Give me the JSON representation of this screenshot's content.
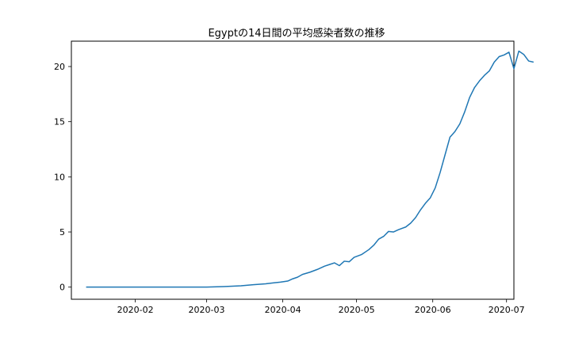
{
  "chart_data": {
    "type": "line",
    "title": "Egyptの14日間の平均感染者数の推移",
    "xlabel": "",
    "ylabel": "",
    "x_axis": {
      "type": "date",
      "range": [
        "2020-01-06",
        "2020-07-04"
      ],
      "ticks": [
        "2020-02",
        "2020-03",
        "2020-04",
        "2020-05",
        "2020-06",
        "2020-07"
      ]
    },
    "y_axis": {
      "range": [
        -1.1,
        22.3
      ],
      "ticks": [
        0,
        5,
        10,
        15,
        20
      ]
    },
    "grid": false,
    "legend": "none",
    "series": [
      {
        "color": "#1f77b4",
        "points": [
          [
            "2020-01-12",
            0
          ],
          [
            "2020-02-01",
            0
          ],
          [
            "2020-02-20",
            0
          ],
          [
            "2020-03-01",
            0
          ],
          [
            "2020-03-08",
            0.05
          ],
          [
            "2020-03-15",
            0.12
          ],
          [
            "2020-03-20",
            0.22
          ],
          [
            "2020-03-25",
            0.3
          ],
          [
            "2020-03-28",
            0.38
          ],
          [
            "2020-03-31",
            0.45
          ],
          [
            "2020-04-03",
            0.55
          ],
          [
            "2020-04-05",
            0.75
          ],
          [
            "2020-04-07",
            0.9
          ],
          [
            "2020-04-09",
            1.15
          ],
          [
            "2020-04-12",
            1.35
          ],
          [
            "2020-04-15",
            1.6
          ],
          [
            "2020-04-18",
            1.9
          ],
          [
            "2020-04-20",
            2.05
          ],
          [
            "2020-04-22",
            2.2
          ],
          [
            "2020-04-24",
            1.95
          ],
          [
            "2020-04-26",
            2.35
          ],
          [
            "2020-04-28",
            2.3
          ],
          [
            "2020-04-30",
            2.7
          ],
          [
            "2020-05-03",
            2.95
          ],
          [
            "2020-05-06",
            3.4
          ],
          [
            "2020-05-08",
            3.8
          ],
          [
            "2020-05-10",
            4.35
          ],
          [
            "2020-05-12",
            4.6
          ],
          [
            "2020-05-14",
            5.05
          ],
          [
            "2020-05-16",
            5.0
          ],
          [
            "2020-05-18",
            5.2
          ],
          [
            "2020-05-21",
            5.45
          ],
          [
            "2020-05-23",
            5.8
          ],
          [
            "2020-05-25",
            6.3
          ],
          [
            "2020-05-27",
            7.0
          ],
          [
            "2020-05-29",
            7.6
          ],
          [
            "2020-05-31",
            8.1
          ],
          [
            "2020-06-02",
            9.0
          ],
          [
            "2020-06-04",
            10.4
          ],
          [
            "2020-06-06",
            12.0
          ],
          [
            "2020-06-08",
            13.6
          ],
          [
            "2020-06-10",
            14.1
          ],
          [
            "2020-06-12",
            14.8
          ],
          [
            "2020-06-14",
            15.9
          ],
          [
            "2020-06-16",
            17.2
          ],
          [
            "2020-06-18",
            18.1
          ],
          [
            "2020-06-20",
            18.7
          ],
          [
            "2020-06-22",
            19.2
          ],
          [
            "2020-06-24",
            19.6
          ],
          [
            "2020-06-26",
            20.4
          ],
          [
            "2020-06-28",
            20.9
          ],
          [
            "2020-06-30",
            21.05
          ],
          [
            "2020-07-02",
            21.3
          ],
          [
            "2020-07-04",
            19.8
          ],
          [
            "2020-07-06",
            21.4
          ],
          [
            "2020-07-08",
            21.1
          ],
          [
            "2020-07-10",
            20.5
          ],
          [
            "2020-07-12",
            20.4
          ]
        ]
      }
    ]
  }
}
